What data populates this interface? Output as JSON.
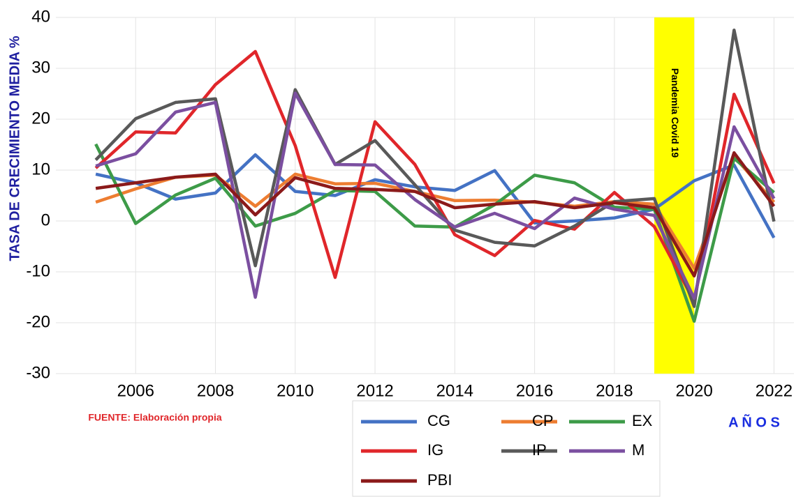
{
  "chart_data": {
    "type": "line",
    "y_axis_label": "TASA DE CRECIMIENTO MEDIA %",
    "x_axis_label": "A Ñ O S",
    "source": "FUENTE: Elaboración propia",
    "annotation": {
      "text": "Pandemia Covid 19",
      "band": [
        2019,
        2020
      ],
      "color": "#ffff00"
    },
    "x": [
      2005,
      2006,
      2007,
      2008,
      2009,
      2010,
      2011,
      2012,
      2013,
      2014,
      2015,
      2016,
      2017,
      2018,
      2019,
      2020,
      2021,
      2022
    ],
    "xlim": [
      2004,
      2022.5
    ],
    "xticks": [
      2006,
      2008,
      2010,
      2012,
      2014,
      2016,
      2018,
      2020,
      2022
    ],
    "ylim": [
      -30,
      40
    ],
    "yticks": [
      -30,
      -20,
      -10,
      0,
      10,
      20,
      30,
      40
    ],
    "grid": true,
    "series": [
      {
        "name": "CG",
        "color": "#4472c4",
        "values": [
          9.2,
          7.5,
          4.3,
          5.5,
          13,
          5.8,
          5,
          8.1,
          6.7,
          6,
          9.9,
          -0.4,
          0,
          0.6,
          2.3,
          7.9,
          11,
          -3.3
        ]
      },
      {
        "name": "CP",
        "color": "#ed7d31",
        "values": [
          3.7,
          6.3,
          8.6,
          9,
          2.9,
          9.2,
          7.3,
          7.4,
          5.8,
          4,
          4.1,
          3.7,
          2.9,
          3.8,
          3.3,
          -9.3,
          12.7,
          3.7
        ]
      },
      {
        "name": "EX",
        "color": "#3d9b48",
        "values": [
          15.1,
          -0.5,
          5.1,
          8.4,
          -1,
          1.5,
          6,
          5.8,
          -1,
          -1.2,
          3.2,
          9,
          7.5,
          2.7,
          2.3,
          -19.7,
          12.3,
          5.6
        ]
      },
      {
        "name": "IG",
        "color": "#e0262a",
        "values": [
          10.4,
          17.5,
          17.3,
          26.8,
          33.3,
          14.8,
          -11.1,
          19.5,
          11.1,
          -2.7,
          -6.8,
          0.1,
          -1.6,
          5.6,
          -1.1,
          -15.8,
          24.9,
          7.4
        ]
      },
      {
        "name": "IP",
        "color": "#595959",
        "values": [
          12,
          20.1,
          23.3,
          24,
          -8.8,
          25.8,
          11.1,
          15.8,
          7.1,
          -1.8,
          -4.2,
          -4.9,
          -1,
          3.8,
          4.4,
          -16.8,
          37.5,
          -0.1
        ]
      },
      {
        "name": "M",
        "color": "#7b4fa0",
        "values": [
          10.8,
          13.2,
          21.4,
          23.3,
          -15,
          25.1,
          11.1,
          11,
          4.2,
          -1.2,
          1.5,
          -1.5,
          4.5,
          2.3,
          1.1,
          -15.2,
          18.5,
          4.4
        ]
      },
      {
        "name": "PBI",
        "color": "#8b1a1a",
        "values": [
          6.4,
          7.5,
          8.6,
          9.2,
          1.2,
          8.5,
          6.4,
          6.2,
          5.8,
          2.6,
          3.3,
          3.8,
          2.6,
          3.6,
          2.6,
          -10.8,
          13.4,
          2.9
        ]
      }
    ]
  }
}
